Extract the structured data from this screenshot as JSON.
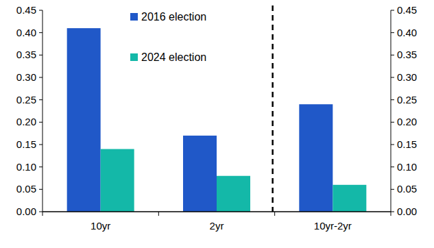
{
  "chart_data": {
    "type": "bar",
    "categories": [
      "10yr",
      "2yr",
      "10yr-2yr"
    ],
    "series": [
      {
        "name": "2016 election",
        "color": "#2058c8",
        "values": [
          0.41,
          0.17,
          0.24
        ]
      },
      {
        "name": "2024 election",
        "color": "#14b8a8",
        "values": [
          0.14,
          0.08,
          0.06
        ]
      }
    ],
    "ylim": [
      0,
      0.45
    ],
    "yticks": [
      {
        "value": 0,
        "label": "0.00"
      },
      {
        "value": 0.05,
        "label": "0.05"
      },
      {
        "value": 0.1,
        "label": "0.10"
      },
      {
        "value": 0.15,
        "label": "0.15"
      },
      {
        "value": 0.2,
        "label": "0.20"
      },
      {
        "value": 0.25,
        "label": "0.25"
      },
      {
        "value": 0.3,
        "label": "0.30"
      },
      {
        "value": 0.35,
        "label": "0.35"
      },
      {
        "value": 0.4,
        "label": "0.40"
      },
      {
        "value": 0.45,
        "label": "0.45"
      }
    ],
    "y2lim": [
      0,
      0.45
    ],
    "y2ticks": [
      {
        "value": 0,
        "label": "0.00"
      },
      {
        "value": 0.05,
        "label": "0.05"
      },
      {
        "value": 0.1,
        "label": "0.10"
      },
      {
        "value": 0.15,
        "label": "0.15"
      },
      {
        "value": 0.2,
        "label": "0.20"
      },
      {
        "value": 0.25,
        "label": "0.25"
      },
      {
        "value": 0.3,
        "label": "0.30"
      },
      {
        "value": 0.35,
        "label": "0.35"
      },
      {
        "value": 0.4,
        "label": "0.40"
      },
      {
        "value": 0.45,
        "label": "0.45"
      }
    ],
    "grid": false,
    "legend": "top"
  }
}
